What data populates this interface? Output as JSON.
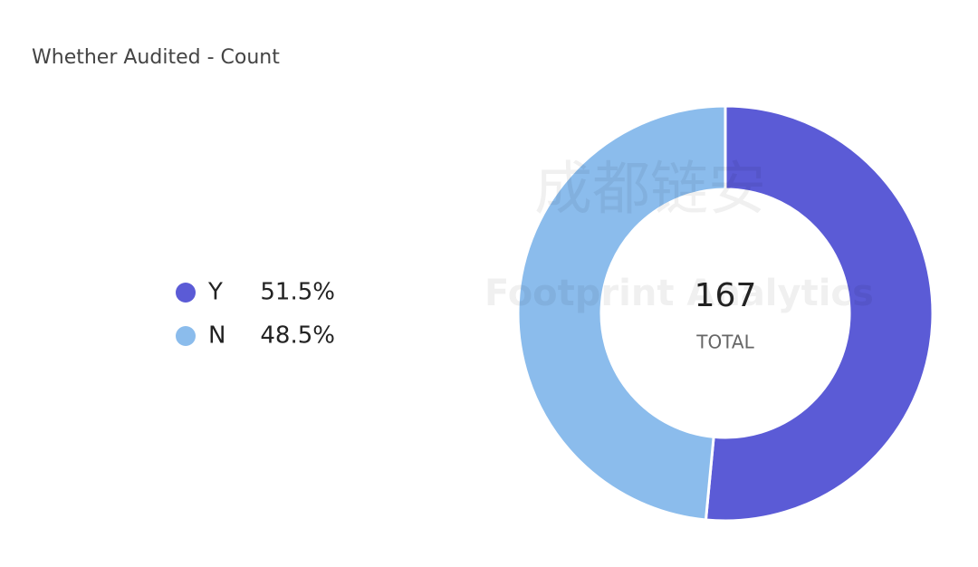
{
  "chart_data": {
    "type": "donut",
    "title": "Whether Audited - Count",
    "categories": [
      "Y",
      "N"
    ],
    "values": [
      51.5,
      48.5
    ],
    "value_labels": [
      "51.5%",
      "48.5%"
    ],
    "colors": [
      "#5b5bd6",
      "#8bbcec"
    ],
    "total": 167,
    "total_label": "TOTAL",
    "watermarks": [
      "成都链安",
      "Footprint Analytics"
    ]
  }
}
